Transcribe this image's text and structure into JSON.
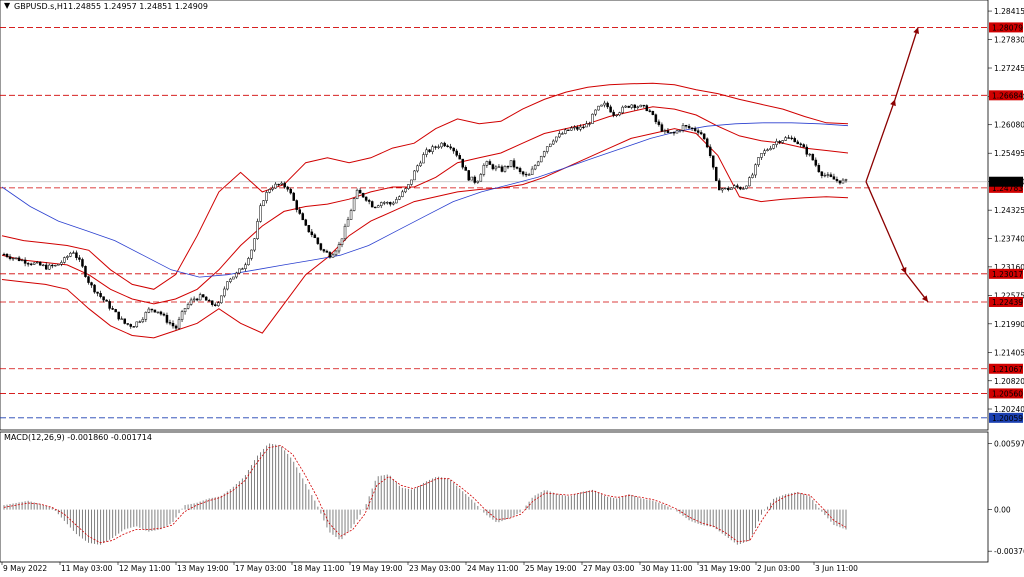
{
  "header": {
    "symbol": "GBPUSD.s,H1",
    "ohlc": "1.24855 1.24957 1.24851 1.24909"
  },
  "macd_header": "MACD(12,26,9) -0.001860 -0.001714",
  "chart_data": {
    "type": "candlestick",
    "price_axis": {
      "ticks": [
        "1.28415",
        "1.27830",
        "1.27245",
        "1.26660",
        "1.26080",
        "1.25495",
        "1.24910",
        "1.24325",
        "1.23740",
        "1.23160",
        "1.22575",
        "1.21990",
        "1.21405",
        "1.20820",
        "1.20240"
      ],
      "range": [
        1.1985,
        1.2856
      ]
    },
    "current_price": "1.24909",
    "levels": [
      {
        "price": 1.28079,
        "label": "1.28079",
        "style": "dashed",
        "color": "#d00000"
      },
      {
        "price": 1.26684,
        "label": "1.26684",
        "style": "dashed",
        "color": "#d00000"
      },
      {
        "price": 1.24783,
        "label": "1.24783",
        "style": "dashed",
        "color": "#d00000"
      },
      {
        "price": 1.23017,
        "label": "1.23017",
        "style": "dashed",
        "color": "#d00000"
      },
      {
        "price": 1.22439,
        "label": "1.22439",
        "style": "dashed",
        "color": "#d00000"
      },
      {
        "price": 1.21067,
        "label": "1.21067",
        "style": "dashed",
        "color": "#d00000"
      },
      {
        "price": 1.2056,
        "label": "1.20560",
        "style": "dashed",
        "color": "#d00000"
      },
      {
        "price": 1.20059,
        "label": "1.20059",
        "style": "dashed",
        "color": "#1a3fb0"
      }
    ],
    "time_labels": [
      "9 May 2022",
      "11 May 03:00",
      "12 May 11:00",
      "13 May 19:00",
      "17 May 03:00",
      "18 May 11:00",
      "19 May 19:00",
      "23 May 03:00",
      "24 May 11:00",
      "25 May 19:00",
      "27 May 03:00",
      "30 May 11:00",
      "31 May 19:00",
      "2 Jun 03:00",
      "3 Jun 11:00"
    ],
    "close_path": [
      1.2342,
      1.2335,
      1.233,
      1.2325,
      1.232,
      1.2315,
      1.2318,
      1.233,
      1.235,
      1.232,
      1.228,
      1.226,
      1.224,
      1.222,
      1.22,
      1.2195,
      1.221,
      1.223,
      1.2225,
      1.2205,
      1.219,
      1.223,
      1.225,
      1.2255,
      1.224,
      1.2238,
      1.229,
      1.23,
      1.232,
      1.236,
      1.245,
      1.248,
      1.2485,
      1.248,
      1.244,
      1.24,
      1.238,
      1.235,
      1.234,
      1.236,
      1.241,
      1.247,
      1.246,
      1.244,
      1.245,
      1.2445,
      1.246,
      1.248,
      1.252,
      1.255,
      1.256,
      1.257,
      1.2565,
      1.254,
      1.25,
      1.249,
      1.253,
      1.252,
      1.2515,
      1.253,
      1.251,
      1.25,
      1.253,
      1.256,
      1.258,
      1.259,
      1.26,
      1.26,
      1.261,
      1.264,
      1.265,
      1.263,
      1.264,
      1.265,
      1.2645,
      1.264,
      1.261,
      1.259,
      1.259,
      1.2605,
      1.26,
      1.2595,
      1.256,
      1.248,
      1.2475,
      1.248,
      1.2478,
      1.25,
      1.2545,
      1.256,
      1.2575,
      1.258,
      1.2578,
      1.256,
      1.254,
      1.251,
      1.25,
      1.2493,
      1.2491
    ],
    "bollinger": {
      "mid": [
        1.234,
        1.233,
        1.2325,
        1.232,
        1.23,
        1.227,
        1.225,
        1.224,
        1.225,
        1.227,
        1.231,
        1.236,
        1.24,
        1.243,
        1.244,
        1.2445,
        1.2455,
        1.247,
        1.248,
        1.248,
        1.25,
        1.253,
        1.254,
        1.255,
        1.257,
        1.259,
        1.26,
        1.261,
        1.2625,
        1.2635,
        1.2645,
        1.264,
        1.2628,
        1.2605,
        1.2585,
        1.2575,
        1.257,
        1.256,
        1.2555,
        1.255
      ],
      "upper": [
        1.238,
        1.237,
        1.2365,
        1.236,
        1.235,
        1.231,
        1.228,
        1.227,
        1.23,
        1.238,
        1.247,
        1.251,
        1.247,
        1.2485,
        1.253,
        1.254,
        1.253,
        1.254,
        1.256,
        1.257,
        1.26,
        1.262,
        1.261,
        1.2615,
        1.264,
        1.266,
        1.2675,
        1.2685,
        1.269,
        1.2692,
        1.2693,
        1.269,
        1.268,
        1.2672,
        1.266,
        1.265,
        1.264,
        1.2625,
        1.2612,
        1.261
      ],
      "lower": [
        1.229,
        1.2285,
        1.228,
        1.227,
        1.223,
        1.2195,
        1.2175,
        1.217,
        1.2185,
        1.22,
        1.223,
        1.22,
        1.218,
        1.224,
        1.23,
        1.2335,
        1.238,
        1.241,
        1.243,
        1.245,
        1.246,
        1.247,
        1.2475,
        1.2478,
        1.2485,
        1.25,
        1.252,
        1.254,
        1.256,
        1.258,
        1.259,
        1.26,
        1.259,
        1.2545,
        1.246,
        1.245,
        1.2455,
        1.2458,
        1.246,
        1.2458
      ]
    },
    "ma_long": [
      1.248,
      1.244,
      1.241,
      1.239,
      1.237,
      1.234,
      1.231,
      1.2295,
      1.23,
      1.231,
      1.232,
      1.233,
      1.234,
      1.236,
      1.239,
      1.242,
      1.245,
      1.247,
      1.2485,
      1.25,
      1.252,
      1.254,
      1.256,
      1.258,
      1.2595,
      1.2605,
      1.261,
      1.2612,
      1.2612,
      1.261,
      1.2606
    ],
    "projection": {
      "start": 1.2491,
      "up": [
        1.266,
        1.2808
      ],
      "down": [
        1.2302,
        1.2244
      ]
    },
    "macd": {
      "axis_ticks": [
        "0.005979",
        "0.00",
        "-0.003763"
      ],
      "range": [
        -0.0042,
        0.0063
      ],
      "histogram": [
        0.0004,
        0.0006,
        0.0008,
        0.0005,
        0.0002,
        -0.001,
        -0.0022,
        -0.003,
        -0.0032,
        -0.0026,
        -0.0018,
        -0.0015,
        -0.002,
        -0.0018,
        -0.0012,
        0.0004,
        0.0006,
        0.001,
        0.0012,
        0.002,
        0.003,
        0.0048,
        0.006,
        0.0058,
        0.0045,
        0.0025,
        0.0005,
        -0.002,
        -0.0028,
        -0.0015,
        0.0002,
        0.003,
        0.0032,
        0.002,
        0.0018,
        0.0025,
        0.003,
        0.0028,
        0.0018,
        0.0008,
        -0.0004,
        -0.0012,
        -0.0008,
        -0.0002,
        0.0012,
        0.0018,
        0.0014,
        0.0012,
        0.0016,
        0.0018,
        0.0012,
        0.001,
        0.0014,
        0.001,
        0.0008,
        0.0004,
        -0.0002,
        -0.001,
        -0.0014,
        -0.0016,
        -0.0024,
        -0.0032,
        -0.0028,
        -0.0004,
        0.001,
        0.0014,
        0.0016,
        0.0012,
        -0.0002,
        -0.0014,
        -0.0018
      ],
      "signal": [
        0.0002,
        0.0004,
        0.0006,
        0.0005,
        0.0002,
        -0.0004,
        -0.0014,
        -0.0024,
        -0.003,
        -0.0028,
        -0.0022,
        -0.0018,
        -0.0018,
        -0.0017,
        -0.0014,
        -0.0002,
        0.0004,
        0.0008,
        0.0011,
        0.0017,
        0.0026,
        0.0042,
        0.0056,
        0.0058,
        0.005,
        0.0032,
        0.0012,
        -0.0012,
        -0.0024,
        -0.0018,
        -0.0004,
        0.0022,
        0.003,
        0.0022,
        0.0019,
        0.0023,
        0.0028,
        0.0028,
        0.002,
        0.0011,
        0.0,
        -0.0009,
        -0.0008,
        -0.0004,
        0.0008,
        0.0015,
        0.0014,
        0.0013,
        0.0015,
        0.0017,
        0.0013,
        0.0011,
        0.0013,
        0.0011,
        0.0009,
        0.0005,
        0.0,
        -0.0007,
        -0.0012,
        -0.0015,
        -0.0021,
        -0.0029,
        -0.0028,
        -0.001,
        0.0006,
        0.0012,
        0.0015,
        0.0013,
        0.0002,
        -0.001,
        -0.0016
      ],
      "colors": {
        "histogram": "#808080",
        "signal": "#d00000"
      }
    },
    "colors": {
      "bollinger": "#d00000",
      "ma_long": "#2a3fcf",
      "level_label_bg": "#d00000",
      "projection": "#8b0000"
    }
  }
}
